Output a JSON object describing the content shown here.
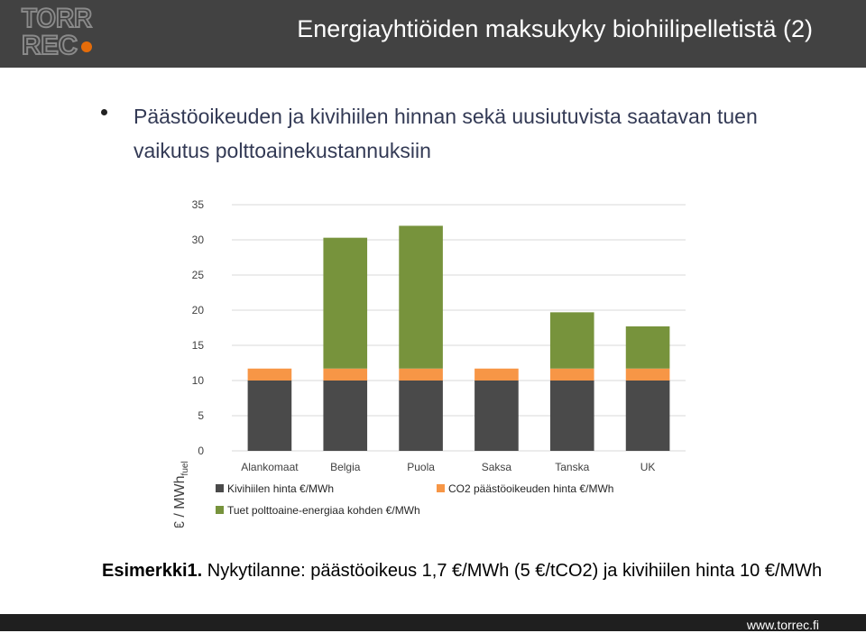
{
  "header": {
    "title": "Energiayhtiöiden maksukyky  biohiilipelletistä  (2)",
    "logo_line1": "TORR",
    "logo_line2": "REC"
  },
  "bullet": {
    "text": "Päästöoikeuden ja kivihiilen hinnan sekä uusiutuvista saatavan tuen vaikutus polttoainekustannuksiin"
  },
  "chart_data": {
    "type": "bar",
    "stacked": true,
    "categories": [
      "Alankomaat",
      "Belgia",
      "Puola",
      "Saksa",
      "Tanska",
      "UK"
    ],
    "series": [
      {
        "name": "Kivihiilen hinta €/MWh",
        "color": "#4a4a4a",
        "values": [
          10,
          10,
          10,
          10,
          10,
          10
        ]
      },
      {
        "name": "CO2 päästöoikeuden hinta €/MWh",
        "color": "#f79646",
        "values": [
          1.7,
          1.7,
          1.7,
          1.7,
          1.7,
          1.7
        ]
      },
      {
        "name": "Tuet polttoaine-energiaa kohden €/MWh",
        "color": "#77933c",
        "values": [
          0,
          18.6,
          20.3,
          0,
          8.0,
          6.0
        ]
      }
    ],
    "ylabel_main": "€ / MWh",
    "ylabel_sub": "fuel",
    "ylim": [
      0,
      35
    ],
    "yticks": [
      0,
      5,
      10,
      15,
      20,
      25,
      30,
      35
    ],
    "grid": true,
    "legend_position": "bottom"
  },
  "example": {
    "label": "Esimerkki1.",
    "text": " Nykytilanne: päästöoikeus 1,7 €/MWh (5 €/tCO2) ja kivihiilen hinta 10 €/MWh"
  },
  "footer": {
    "url": "www.torrec.fi"
  }
}
